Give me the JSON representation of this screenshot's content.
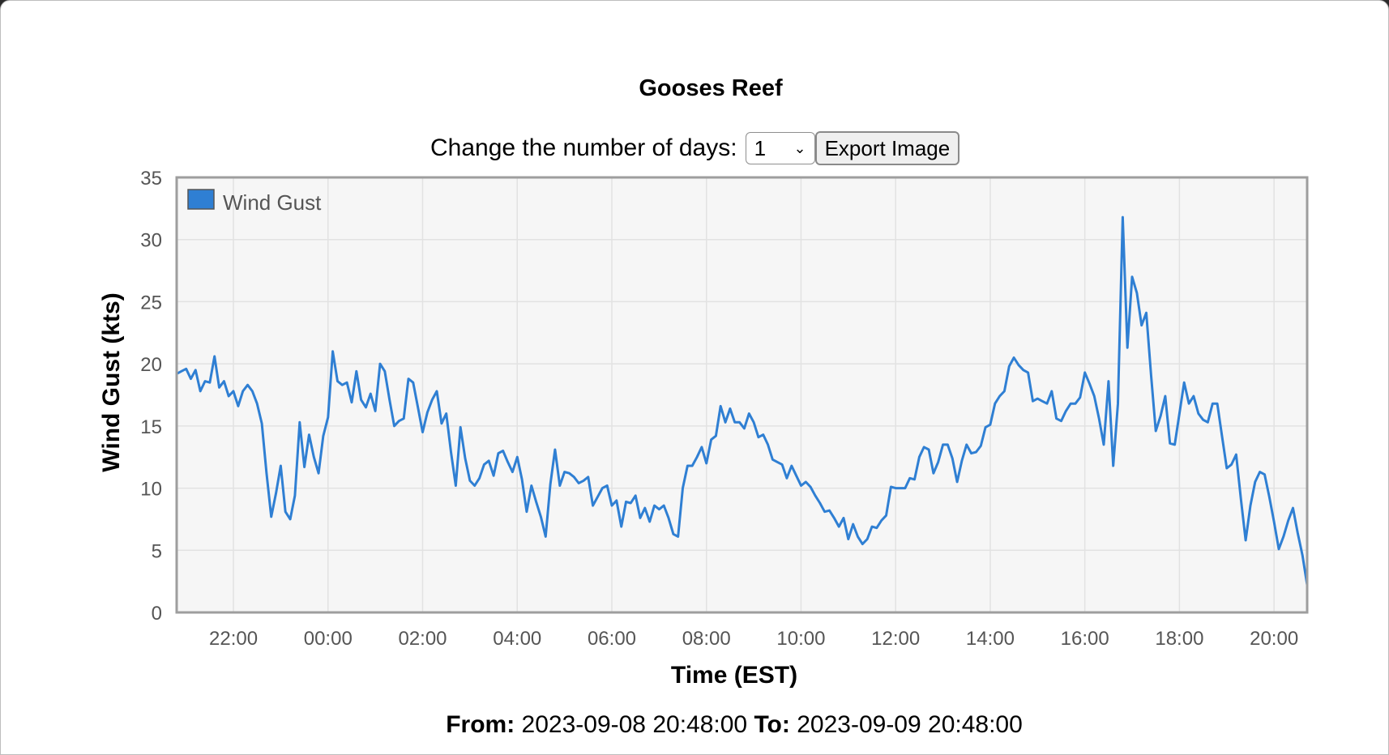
{
  "page": {
    "title": "Gooses Reef",
    "days_label": "Change the number of days:",
    "days_value": "1",
    "export_label": "Export Image",
    "from_label": "From:",
    "from_value": "2023-09-08 20:48:00",
    "to_label": "To:",
    "to_value": "2023-09-09 20:48:00"
  },
  "chart_data": {
    "type": "line",
    "xlabel": "Time (EST)",
    "ylabel": "Wind Gust (kts)",
    "ylim": [
      0,
      35
    ],
    "yticks": [
      "0",
      "5",
      "10",
      "15",
      "20",
      "25",
      "30",
      "35"
    ],
    "xticks": [
      "22:00",
      "00:00",
      "02:00",
      "04:00",
      "06:00",
      "08:00",
      "10:00",
      "12:00",
      "14:00",
      "16:00",
      "18:00",
      "20:00"
    ],
    "grid": true,
    "legend_position": "top-left",
    "series": [
      {
        "name": "Wind Gust",
        "color": "#2f7fd3",
        "x": [
          "2023-09-08 20:48",
          "2023-09-08 20:54",
          "2023-09-08 21:00",
          "2023-09-08 21:06",
          "2023-09-08 21:12",
          "2023-09-08 21:18",
          "2023-09-08 21:24",
          "2023-09-08 21:30",
          "2023-09-08 21:36",
          "2023-09-08 21:42",
          "2023-09-08 21:48",
          "2023-09-08 21:54",
          "2023-09-08 22:00",
          "2023-09-08 22:06",
          "2023-09-08 22:12",
          "2023-09-08 22:18",
          "2023-09-08 22:24",
          "2023-09-08 22:30",
          "2023-09-08 22:36",
          "2023-09-08 22:42",
          "2023-09-08 22:48",
          "2023-09-08 22:54",
          "2023-09-08 23:00",
          "2023-09-08 23:06",
          "2023-09-08 23:12",
          "2023-09-08 23:18",
          "2023-09-08 23:24",
          "2023-09-08 23:30",
          "2023-09-08 23:36",
          "2023-09-08 23:42",
          "2023-09-08 23:48",
          "2023-09-08 23:54",
          "2023-09-09 00:00",
          "2023-09-09 00:06",
          "2023-09-09 00:12",
          "2023-09-09 00:18",
          "2023-09-09 00:24",
          "2023-09-09 00:30",
          "2023-09-09 00:36",
          "2023-09-09 00:42",
          "2023-09-09 00:48",
          "2023-09-09 00:54",
          "2023-09-09 01:00",
          "2023-09-09 01:06",
          "2023-09-09 01:12",
          "2023-09-09 01:18",
          "2023-09-09 01:24",
          "2023-09-09 01:30",
          "2023-09-09 01:36",
          "2023-09-09 01:42",
          "2023-09-09 01:48",
          "2023-09-09 01:54",
          "2023-09-09 02:00",
          "2023-09-09 02:06",
          "2023-09-09 02:12",
          "2023-09-09 02:18",
          "2023-09-09 02:24",
          "2023-09-09 02:30",
          "2023-09-09 02:36",
          "2023-09-09 02:42",
          "2023-09-09 02:48",
          "2023-09-09 02:54",
          "2023-09-09 03:00",
          "2023-09-09 03:06",
          "2023-09-09 03:12",
          "2023-09-09 03:18",
          "2023-09-09 03:24",
          "2023-09-09 03:30",
          "2023-09-09 03:36",
          "2023-09-09 03:42",
          "2023-09-09 03:48",
          "2023-09-09 03:54",
          "2023-09-09 04:00",
          "2023-09-09 04:06",
          "2023-09-09 04:12",
          "2023-09-09 04:18",
          "2023-09-09 04:24",
          "2023-09-09 04:30",
          "2023-09-09 04:36",
          "2023-09-09 04:42",
          "2023-09-09 04:48",
          "2023-09-09 04:54",
          "2023-09-09 05:00",
          "2023-09-09 05:06",
          "2023-09-09 05:12",
          "2023-09-09 05:18",
          "2023-09-09 05:24",
          "2023-09-09 05:30",
          "2023-09-09 05:36",
          "2023-09-09 05:42",
          "2023-09-09 05:48",
          "2023-09-09 05:54",
          "2023-09-09 06:00",
          "2023-09-09 06:06",
          "2023-09-09 06:12",
          "2023-09-09 06:18",
          "2023-09-09 06:24",
          "2023-09-09 06:30",
          "2023-09-09 06:36",
          "2023-09-09 06:42",
          "2023-09-09 06:48",
          "2023-09-09 06:54",
          "2023-09-09 07:00",
          "2023-09-09 07:06",
          "2023-09-09 07:12",
          "2023-09-09 07:18",
          "2023-09-09 07:24",
          "2023-09-09 07:30",
          "2023-09-09 07:36",
          "2023-09-09 07:42",
          "2023-09-09 07:48",
          "2023-09-09 07:54",
          "2023-09-09 08:00",
          "2023-09-09 08:06",
          "2023-09-09 08:12",
          "2023-09-09 08:18",
          "2023-09-09 08:24",
          "2023-09-09 08:30",
          "2023-09-09 08:36",
          "2023-09-09 08:42",
          "2023-09-09 08:48",
          "2023-09-09 08:54",
          "2023-09-09 09:00",
          "2023-09-09 09:06",
          "2023-09-09 09:12",
          "2023-09-09 09:18",
          "2023-09-09 09:24",
          "2023-09-09 09:30",
          "2023-09-09 09:36",
          "2023-09-09 09:42",
          "2023-09-09 09:48",
          "2023-09-09 09:54",
          "2023-09-09 10:00",
          "2023-09-09 10:06",
          "2023-09-09 10:12",
          "2023-09-09 10:18",
          "2023-09-09 10:24",
          "2023-09-09 10:30",
          "2023-09-09 10:36",
          "2023-09-09 10:42",
          "2023-09-09 10:48",
          "2023-09-09 10:54",
          "2023-09-09 11:00",
          "2023-09-09 11:06",
          "2023-09-09 11:12",
          "2023-09-09 11:18",
          "2023-09-09 11:24",
          "2023-09-09 11:30",
          "2023-09-09 11:36",
          "2023-09-09 11:42",
          "2023-09-09 11:48",
          "2023-09-09 11:54",
          "2023-09-09 12:00",
          "2023-09-09 12:06",
          "2023-09-09 12:12",
          "2023-09-09 12:18",
          "2023-09-09 12:24",
          "2023-09-09 12:30",
          "2023-09-09 12:36",
          "2023-09-09 12:42",
          "2023-09-09 12:48",
          "2023-09-09 12:54",
          "2023-09-09 13:00",
          "2023-09-09 13:06",
          "2023-09-09 13:12",
          "2023-09-09 13:18",
          "2023-09-09 13:24",
          "2023-09-09 13:30",
          "2023-09-09 13:36",
          "2023-09-09 13:42",
          "2023-09-09 13:48",
          "2023-09-09 13:54",
          "2023-09-09 14:00",
          "2023-09-09 14:06",
          "2023-09-09 14:12",
          "2023-09-09 14:18",
          "2023-09-09 14:24",
          "2023-09-09 14:30",
          "2023-09-09 14:36",
          "2023-09-09 14:42",
          "2023-09-09 14:48",
          "2023-09-09 14:54",
          "2023-09-09 15:00",
          "2023-09-09 15:06",
          "2023-09-09 15:12",
          "2023-09-09 15:18",
          "2023-09-09 15:24",
          "2023-09-09 15:30",
          "2023-09-09 15:36",
          "2023-09-09 15:42",
          "2023-09-09 15:48",
          "2023-09-09 15:54",
          "2023-09-09 16:00",
          "2023-09-09 16:06",
          "2023-09-09 16:12",
          "2023-09-09 16:18",
          "2023-09-09 16:24",
          "2023-09-09 16:30",
          "2023-09-09 16:36",
          "2023-09-09 16:42",
          "2023-09-09 16:48",
          "2023-09-09 16:54",
          "2023-09-09 17:00",
          "2023-09-09 17:06",
          "2023-09-09 17:12",
          "2023-09-09 17:18",
          "2023-09-09 17:24",
          "2023-09-09 17:30",
          "2023-09-09 17:36",
          "2023-09-09 17:42",
          "2023-09-09 17:48",
          "2023-09-09 17:54",
          "2023-09-09 18:00",
          "2023-09-09 18:06",
          "2023-09-09 18:12",
          "2023-09-09 18:18",
          "2023-09-09 18:24",
          "2023-09-09 18:30",
          "2023-09-09 18:36",
          "2023-09-09 18:42",
          "2023-09-09 18:48",
          "2023-09-09 18:54",
          "2023-09-09 19:00",
          "2023-09-09 19:06",
          "2023-09-09 19:12",
          "2023-09-09 19:18",
          "2023-09-09 19:24",
          "2023-09-09 19:30",
          "2023-09-09 19:36",
          "2023-09-09 19:42",
          "2023-09-09 19:48",
          "2023-09-09 19:54",
          "2023-09-09 20:00",
          "2023-09-09 20:06",
          "2023-09-09 20:12",
          "2023-09-09 20:18",
          "2023-09-09 20:24",
          "2023-09-09 20:30",
          "2023-09-09 20:36",
          "2023-09-09 20:42"
        ],
        "values": [
          19.2,
          19.4,
          19.6,
          18.8,
          19.5,
          17.8,
          18.6,
          18.5,
          20.6,
          18.1,
          18.6,
          17.4,
          17.8,
          16.6,
          17.8,
          18.3,
          17.8,
          16.8,
          15.2,
          11.2,
          7.7,
          9.6,
          11.8,
          8.1,
          7.5,
          9.4,
          15.3,
          11.7,
          14.3,
          12.5,
          11.2,
          14.2,
          15.7,
          21.0,
          18.6,
          18.3,
          18.5,
          16.9,
          19.4,
          17.1,
          16.5,
          17.6,
          16.2,
          20.0,
          19.4,
          17.1,
          15.0,
          15.4,
          15.6,
          18.8,
          18.5,
          16.5,
          14.5,
          16.1,
          17.1,
          17.8,
          15.2,
          16.0,
          12.9,
          10.2,
          14.9,
          12.4,
          10.6,
          10.2,
          10.8,
          11.9,
          12.2,
          11.0,
          12.8,
          13.0,
          12.1,
          11.3,
          12.5,
          10.7,
          8.1,
          10.2,
          8.9,
          7.7,
          6.1,
          10.3,
          13.1,
          10.2,
          11.3,
          11.2,
          10.9,
          10.4,
          10.6,
          10.9,
          8.6,
          9.3,
          10.0,
          10.2,
          8.6,
          9.0,
          6.9,
          8.9,
          8.8,
          9.4,
          7.6,
          8.4,
          7.3,
          8.6,
          8.3,
          8.6,
          7.6,
          6.3,
          6.1,
          10.0,
          11.8,
          11.8,
          12.5,
          13.3,
          12.0,
          13.9,
          14.2,
          16.6,
          15.3,
          16.4,
          15.3,
          15.3,
          14.8,
          16.0,
          15.3,
          14.1,
          14.3,
          13.5,
          12.3,
          12.1,
          11.9,
          10.8,
          11.8,
          11.0,
          10.2,
          10.5,
          10.1,
          9.4,
          8.8,
          8.1,
          8.2,
          7.6,
          6.9,
          7.6,
          5.9,
          7.1,
          6.1,
          5.5,
          5.9,
          6.9,
          6.8,
          7.4,
          7.8,
          10.1,
          10.0,
          10.0,
          10.0,
          10.8,
          10.7,
          12.5,
          13.3,
          13.1,
          11.2,
          12.1,
          13.5,
          13.5,
          12.4,
          10.5,
          12.2,
          13.5,
          12.8,
          12.9,
          13.4,
          14.9,
          15.1,
          16.8,
          17.4,
          17.8,
          19.8,
          20.5,
          19.9,
          19.5,
          19.3,
          17.0,
          17.2,
          17.0,
          16.8,
          17.8,
          15.6,
          15.4,
          16.2,
          16.8,
          16.8,
          17.3,
          19.3,
          18.4,
          17.4,
          15.6,
          13.5,
          18.6,
          11.8,
          16.8,
          31.8,
          21.3,
          27.0,
          25.7,
          23.1,
          24.1,
          19.1,
          14.6,
          15.8,
          17.4,
          13.6,
          13.5,
          16.0,
          18.5,
          16.8,
          17.4,
          16.0,
          15.5,
          15.3,
          16.8,
          16.8,
          14.2,
          11.6,
          11.9,
          12.7,
          9.1,
          5.8,
          8.6,
          10.5,
          11.3,
          11.1,
          9.3,
          7.3,
          5.1,
          6.1,
          7.4,
          8.4,
          6.4,
          4.6,
          2.2
        ]
      }
    ]
  }
}
